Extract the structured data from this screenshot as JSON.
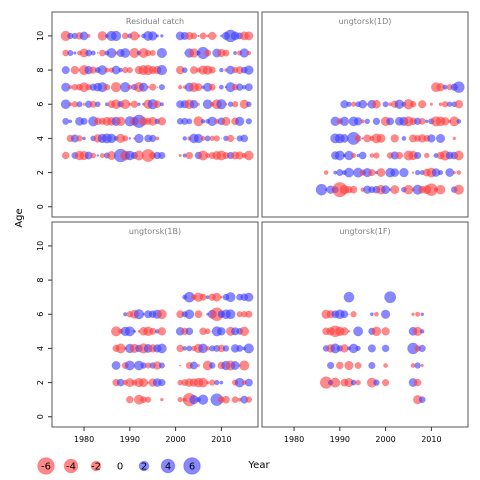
{
  "chart_data": {
    "type": "scatter",
    "subtype": "bubble-residuals",
    "ylabel": "Age",
    "xlabel": "Year",
    "xlim": [
      1973,
      2018
    ],
    "ylim": [
      -0.6,
      11.4
    ],
    "x_ticks": [
      1980,
      1990,
      2000,
      2010
    ],
    "y_ticks": [
      0,
      2,
      4,
      6,
      8,
      10
    ],
    "grid": false,
    "colors": {
      "negative": "#ff3b3b",
      "positive": "#3b3bff",
      "frame": "#555555",
      "title": "#808080"
    },
    "legend": {
      "position": "bottom-left",
      "values": [
        -6,
        -4,
        -2,
        0,
        2,
        4,
        6
      ],
      "labels": [
        "-6",
        "-4",
        "-2",
        "0",
        "2",
        "4",
        "6"
      ]
    },
    "panels": [
      {
        "title": "Residual catch",
        "seed": 11,
        "years": [
          1976,
          2016
        ],
        "ages": [
          3,
          10
        ],
        "skip_years": [
          1998,
          1999,
          2000
        ],
        "big": [
          [
            1975,
            5,
            5.2
          ],
          [
            1999,
            6,
            4.8
          ],
          [
            1988,
            3,
            4.2
          ],
          [
            1992,
            5,
            4.0
          ],
          [
            2012,
            10,
            3.6
          ],
          [
            1994,
            3,
            3.8
          ],
          [
            2006,
            9,
            3.4
          ]
        ]
      },
      {
        "title": "ungtorsk(1D)",
        "seed": 23,
        "years": [
          1986,
          2016
        ],
        "ages": [
          1,
          7
        ],
        "age_year_start": {
          "1": 1986,
          "2": 1987,
          "3": 1988,
          "4": 1989,
          "5": 1989,
          "6": 1990,
          "7": 2011
        },
        "skip_years": [],
        "big": [
          [
            1990,
            1,
            5.2
          ],
          [
            1986,
            1,
            3.0
          ],
          [
            2010,
            1,
            3.6
          ],
          [
            1993,
            4,
            3.8
          ],
          [
            2016,
            7,
            3.0
          ]
        ]
      },
      {
        "title": "ungtorsk(1B)",
        "seed": 37,
        "years": [
          1987,
          2016
        ],
        "ages": [
          1,
          7
        ],
        "age_year_start": {
          "1": 1990,
          "2": 1987,
          "3": 1987,
          "4": 1987,
          "5": 1987,
          "6": 1989,
          "7": 2002
        },
        "skip_years": [
          1998,
          1999,
          2000
        ],
        "big": [
          [
            2009,
            6,
            4.2
          ],
          [
            2003,
            1,
            4.0
          ],
          [
            2009,
            1,
            3.6
          ],
          [
            2003,
            7,
            2.6
          ],
          [
            2012,
            7,
            2.2
          ]
        ]
      },
      {
        "title": "ungtorsk(1F)",
        "seed": 53,
        "years": [
          1987,
          2008
        ],
        "ages": [
          1,
          7
        ],
        "sparse_age_years": {
          "1": [
            1991,
            2007,
            2008
          ],
          "7": [
            1992,
            2001
          ]
        },
        "skip_years": [
          1995,
          1996,
          1999,
          2001,
          2002,
          2003,
          2004,
          2005
        ],
        "big": [
          [
            2001,
            7,
            3.2
          ],
          [
            1992,
            7,
            2.6
          ],
          [
            1989,
            5,
            3.0
          ],
          [
            2006,
            4,
            3.0
          ],
          [
            1987,
            2,
            3.4
          ]
        ]
      }
    ]
  }
}
